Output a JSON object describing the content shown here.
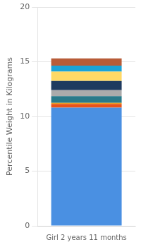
{
  "chart_data": {
    "type": "bar",
    "categories": [
      "Girl 2 years 11 months"
    ],
    "series": [
      {
        "color": "#4A90E2",
        "values": [
          10.8
        ]
      },
      {
        "color": "#E8531A",
        "values": [
          0.35
        ]
      },
      {
        "color": "#E8A020",
        "values": [
          0.1
        ]
      },
      {
        "color": "#2A7A8A",
        "values": [
          0.6
        ]
      },
      {
        "color": "#ABABAB",
        "values": [
          0.55
        ]
      },
      {
        "color": "#1E3A5F",
        "values": [
          0.85
        ]
      },
      {
        "color": "#FFD966",
        "values": [
          0.85
        ]
      },
      {
        "color": "#1BA3D8",
        "values": [
          0.55
        ]
      },
      {
        "color": "#B85C38",
        "values": [
          0.65
        ]
      }
    ],
    "ylabel": "Percentile Weight in Kilograms",
    "ylim": [
      0,
      20
    ],
    "yticks": [
      0,
      5,
      10,
      15,
      20
    ],
    "stacked": true,
    "grid": true
  }
}
